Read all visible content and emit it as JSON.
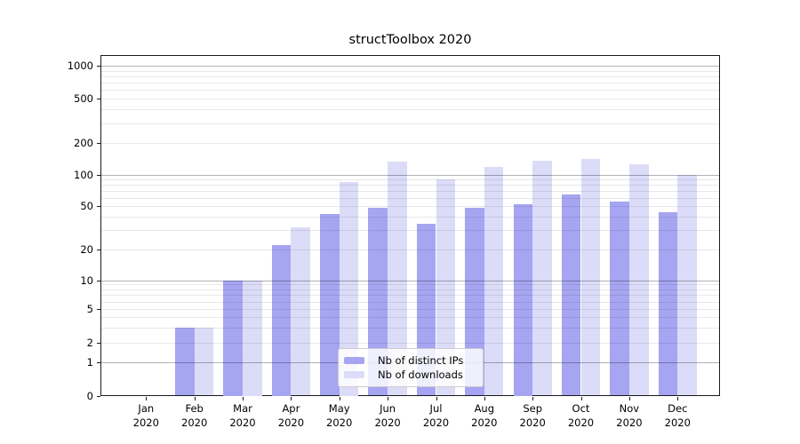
{
  "title": "structToolbox 2020",
  "colors": {
    "distinct_ips": "#a5a5f2",
    "downloads": "#dcdcf9",
    "grid_major": "rgba(0,0,0,0.30)",
    "grid_minor": "rgba(0,0,0,0.09)",
    "axis": "#1a1a1a",
    "text": "#000000",
    "legend_border": "#cccccc"
  },
  "legend": {
    "items": [
      {
        "series": "distinct_ips",
        "label": "Nb of distinct IPs"
      },
      {
        "series": "downloads",
        "label": "Nb of downloads"
      }
    ]
  },
  "y_axis": {
    "tick_labels": [
      "0",
      "1",
      "2",
      "5",
      "10",
      "20",
      "50",
      "100",
      "200",
      "500",
      "1000"
    ]
  },
  "x_axis": {
    "months": [
      "Jan",
      "Feb",
      "Mar",
      "Apr",
      "May",
      "Jun",
      "Jul",
      "Aug",
      "Sep",
      "Oct",
      "Nov",
      "Dec"
    ],
    "year": "2020"
  },
  "chart_data": {
    "type": "bar",
    "title": "structToolbox 2020",
    "categories": [
      "Jan 2020",
      "Feb 2020",
      "Mar 2020",
      "Apr 2020",
      "May 2020",
      "Jun 2020",
      "Jul 2020",
      "Aug 2020",
      "Sep 2020",
      "Oct 2020",
      "Nov 2020",
      "Dec 2020"
    ],
    "series": [
      {
        "name": "Nb of distinct IPs",
        "key": "distinct_ips",
        "color": "#a5a5f2",
        "values": [
          0,
          3,
          10,
          22,
          42,
          48,
          34,
          48,
          52,
          64,
          55,
          44
        ]
      },
      {
        "name": "Nb of downloads",
        "key": "downloads",
        "color": "#dcdcf9",
        "values": [
          0,
          3,
          10,
          32,
          85,
          132,
          90,
          118,
          135,
          140,
          126,
          100
        ]
      }
    ],
    "yscale": "log above 1, linear segment 0-1",
    "yticks": [
      0,
      1,
      2,
      5,
      10,
      20,
      50,
      100,
      200,
      500,
      1000
    ],
    "ylim": [
      0,
      1400
    ],
    "grid": "horizontal major (decades) + minor lines, drawn over bars",
    "legend_position": "inside lower-center"
  }
}
